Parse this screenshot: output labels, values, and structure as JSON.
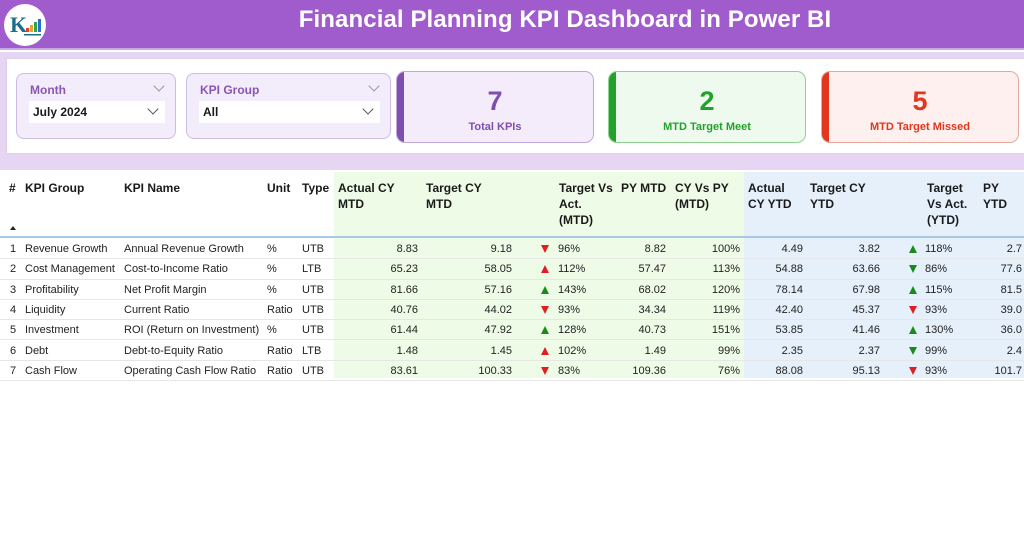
{
  "header": {
    "title": "Financial Planning KPI Dashboard in Power BI",
    "logo_icon": "company-logo-icon"
  },
  "filters": {
    "month": {
      "label": "Month",
      "value": "July 2024"
    },
    "kpi_group": {
      "label": "KPI Group",
      "value": "All"
    }
  },
  "cards": [
    {
      "value": "7",
      "label": "Total KPIs",
      "color": "#7e4fae",
      "bg": "#f4ecfa",
      "border": "#c0a7d9"
    },
    {
      "value": "2",
      "label": "MTD Target Meet",
      "color": "#22a22a",
      "bg": "#effaef",
      "border": "#8fd18f"
    },
    {
      "value": "5",
      "label": "MTD Target Missed",
      "color": "#e0371d",
      "bg": "#fdf0ee",
      "border": "#e8a79d"
    }
  ],
  "table": {
    "columns": {
      "num": "#",
      "kpi_group": "KPI Group",
      "kpi_name": "KPI Name",
      "unit": "Unit",
      "type": "Type",
      "actual_cy_mtd": "Actual CY MTD",
      "target_cy_mtd": "Target CY MTD",
      "target_vs_act_mtd": "Target Vs Act. (MTD)",
      "py_mtd": "PY MTD",
      "cy_vs_py_mtd": "CY Vs PY (MTD)",
      "actual_cy_ytd": "Actual CY YTD",
      "target_cy_ytd": "Target CY YTD",
      "target_vs_act_ytd": "Target Vs Act. (YTD)",
      "py_ytd": "PY YTD"
    },
    "header_lines": {
      "actual_cy_mtd": [
        "Actual CY",
        "MTD"
      ],
      "target_cy_mtd": [
        "Target CY",
        "MTD"
      ],
      "target_vs_act_mtd": [
        "Target Vs",
        "Act.",
        "(MTD)"
      ],
      "py_mtd": [
        "PY MTD"
      ],
      "cy_vs_py_mtd": [
        "CY Vs PY",
        "(MTD)"
      ],
      "actual_cy_ytd": [
        "Actual",
        "CY YTD"
      ],
      "target_cy_ytd": [
        "Target CY",
        "YTD"
      ],
      "target_vs_act_ytd": [
        "Target",
        "Vs Act.",
        "(YTD)"
      ],
      "py_ytd": [
        "PY YTD"
      ]
    },
    "sort_indicator": "sort-ascending-icon",
    "rows": [
      {
        "num": "1",
        "kpi_group": "Revenue Growth",
        "kpi_name": "Annual Revenue Growth",
        "unit": "%",
        "type": "UTB",
        "actual_cy_mtd": "8.83",
        "target_cy_mtd": "9.18",
        "mtd_icon": "down-red",
        "target_vs_act_mtd": "96%",
        "py_mtd": "8.82",
        "cy_vs_py_mtd": "100%",
        "actual_cy_ytd": "4.49",
        "target_cy_ytd": "3.82",
        "ytd_icon": "up-green",
        "target_vs_act_ytd": "118%",
        "py_ytd": "2.7"
      },
      {
        "num": "2",
        "kpi_group": "Cost Management",
        "kpi_name": "Cost-to-Income Ratio",
        "unit": "%",
        "type": "LTB",
        "actual_cy_mtd": "65.23",
        "target_cy_mtd": "58.05",
        "mtd_icon": "up-red",
        "target_vs_act_mtd": "112%",
        "py_mtd": "57.47",
        "cy_vs_py_mtd": "113%",
        "actual_cy_ytd": "54.88",
        "target_cy_ytd": "63.66",
        "ytd_icon": "down-green",
        "target_vs_act_ytd": "86%",
        "py_ytd": "77.6"
      },
      {
        "num": "3",
        "kpi_group": "Profitability",
        "kpi_name": "Net Profit Margin",
        "unit": "%",
        "type": "UTB",
        "actual_cy_mtd": "81.66",
        "target_cy_mtd": "57.16",
        "mtd_icon": "up-green",
        "target_vs_act_mtd": "143%",
        "py_mtd": "68.02",
        "cy_vs_py_mtd": "120%",
        "actual_cy_ytd": "78.14",
        "target_cy_ytd": "67.98",
        "ytd_icon": "up-green",
        "target_vs_act_ytd": "115%",
        "py_ytd": "81.5"
      },
      {
        "num": "4",
        "kpi_group": "Liquidity",
        "kpi_name": "Current Ratio",
        "unit": "Ratio",
        "type": "UTB",
        "actual_cy_mtd": "40.76",
        "target_cy_mtd": "44.02",
        "mtd_icon": "down-red",
        "target_vs_act_mtd": "93%",
        "py_mtd": "34.34",
        "cy_vs_py_mtd": "119%",
        "actual_cy_ytd": "42.40",
        "target_cy_ytd": "45.37",
        "ytd_icon": "down-red",
        "target_vs_act_ytd": "93%",
        "py_ytd": "39.0"
      },
      {
        "num": "5",
        "kpi_group": "Investment",
        "kpi_name": "ROI (Return on Investment)",
        "unit": "%",
        "type": "UTB",
        "actual_cy_mtd": "61.44",
        "target_cy_mtd": "47.92",
        "mtd_icon": "up-green",
        "target_vs_act_mtd": "128%",
        "py_mtd": "40.73",
        "cy_vs_py_mtd": "151%",
        "actual_cy_ytd": "53.85",
        "target_cy_ytd": "41.46",
        "ytd_icon": "up-green",
        "target_vs_act_ytd": "130%",
        "py_ytd": "36.0"
      },
      {
        "num": "6",
        "kpi_group": "Debt",
        "kpi_name": "Debt-to-Equity Ratio",
        "unit": "Ratio",
        "type": "LTB",
        "actual_cy_mtd": "1.48",
        "target_cy_mtd": "1.45",
        "mtd_icon": "up-red",
        "target_vs_act_mtd": "102%",
        "py_mtd": "1.49",
        "cy_vs_py_mtd": "99%",
        "actual_cy_ytd": "2.35",
        "target_cy_ytd": "2.37",
        "ytd_icon": "down-green",
        "target_vs_act_ytd": "99%",
        "py_ytd": "2.4"
      },
      {
        "num": "7",
        "kpi_group": "Cash Flow",
        "kpi_name": "Operating Cash Flow Ratio",
        "unit": "Ratio",
        "type": "UTB",
        "actual_cy_mtd": "83.61",
        "target_cy_mtd": "100.33",
        "mtd_icon": "down-red",
        "target_vs_act_mtd": "83%",
        "py_mtd": "109.36",
        "cy_vs_py_mtd": "76%",
        "actual_cy_ytd": "88.08",
        "target_cy_ytd": "95.13",
        "ytd_icon": "down-red",
        "target_vs_act_ytd": "93%",
        "py_ytd": "101.7"
      }
    ]
  },
  "colors": {
    "header_bg": "#a05bcc",
    "band_bg": "#e6d6f3",
    "mtd_section_bg": "#eefbe6",
    "ytd_section_bg": "#e5f0fb",
    "up_green": "#1a8a1a",
    "red": "#e02020"
  }
}
